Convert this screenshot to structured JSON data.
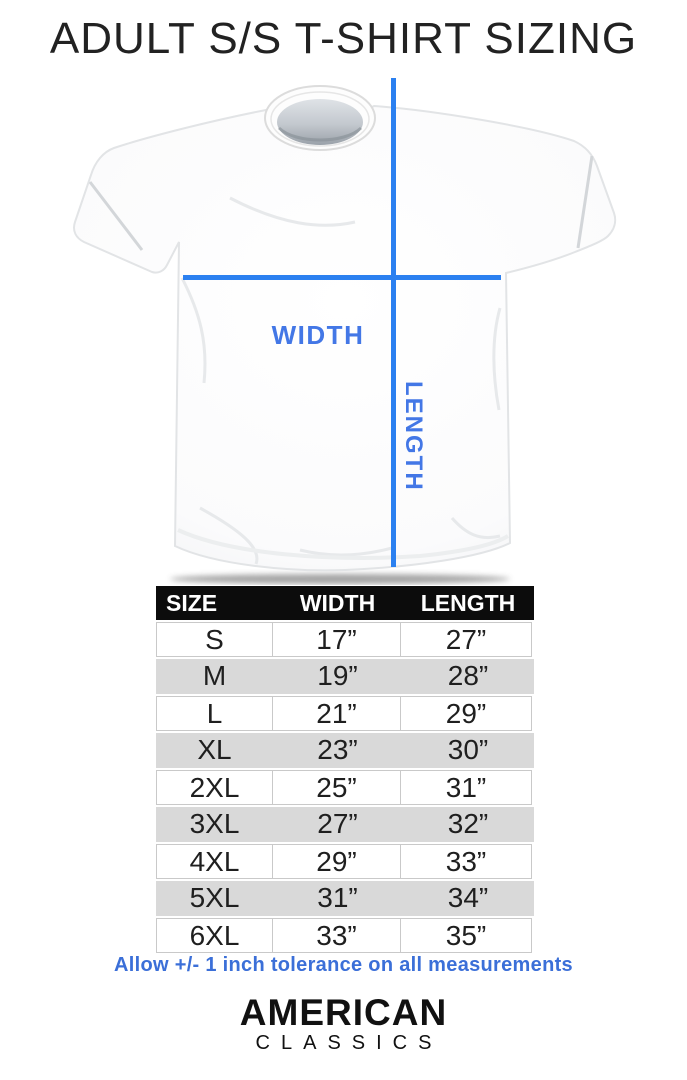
{
  "page": {
    "title": "ADULT S/S T-SHIRT SIZING"
  },
  "diagram": {
    "width_label": "WIDTH",
    "length_label": "LENGTH"
  },
  "size_table": {
    "columns": [
      "SIZE",
      "WIDTH",
      "LENGTH"
    ],
    "rows": [
      {
        "size": "S",
        "width": "17”",
        "length": "27”"
      },
      {
        "size": "M",
        "width": "19”",
        "length": "28”"
      },
      {
        "size": "L",
        "width": "21”",
        "length": "29”"
      },
      {
        "size": "XL",
        "width": "23”",
        "length": "30”"
      },
      {
        "size": "2XL",
        "width": "25”",
        "length": "31”"
      },
      {
        "size": "3XL",
        "width": "27”",
        "length": "32”"
      },
      {
        "size": "4XL",
        "width": "29”",
        "length": "33”"
      },
      {
        "size": "5XL",
        "width": "31”",
        "length": "34”"
      },
      {
        "size": "6XL",
        "width": "33”",
        "length": "35”"
      }
    ]
  },
  "note": {
    "text": "Allow +/- 1 inch tolerance on all measurements"
  },
  "brand": {
    "line1": "AMERICAN",
    "line2": "CLASSICS"
  },
  "colors": {
    "line_blue": "#2b80f0",
    "label_blue": "#4377e6",
    "note_blue": "#3b6fd8",
    "header_bg": "#0c0c0c",
    "alt_row_bg": "#d9d9d9",
    "title_color": "#222222",
    "brand_color": "#111111"
  }
}
